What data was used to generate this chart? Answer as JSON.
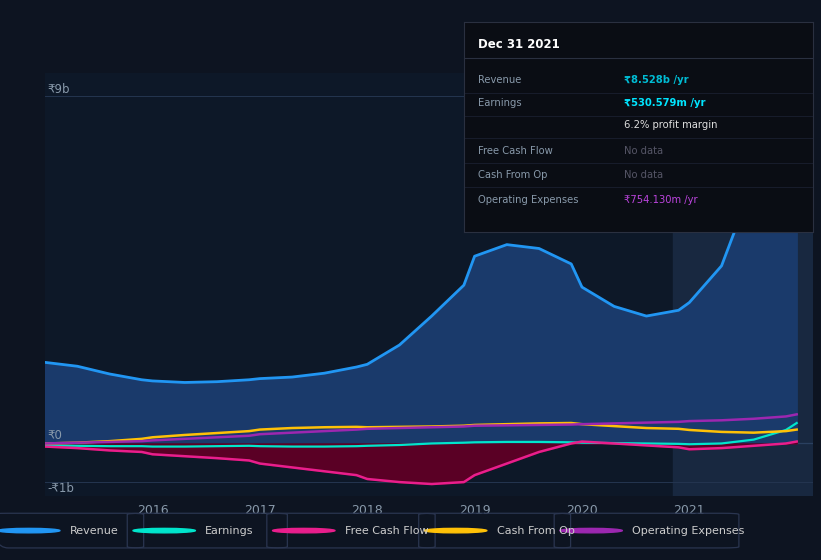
{
  "bg_color": "#0d1421",
  "plot_bg_color": "#0d1828",
  "grid_color": "#243550",
  "highlight_color": "#152030",
  "years_x": [
    2015.0,
    2015.3,
    2015.6,
    2015.9,
    2016.0,
    2016.3,
    2016.6,
    2016.9,
    2017.0,
    2017.3,
    2017.6,
    2017.9,
    2018.0,
    2018.3,
    2018.6,
    2018.9,
    2019.0,
    2019.3,
    2019.6,
    2019.9,
    2020.0,
    2020.3,
    2020.6,
    2020.9,
    2021.0,
    2021.3,
    2021.6,
    2021.9,
    2022.0
  ],
  "revenue": [
    2.1,
    2.0,
    1.8,
    1.65,
    1.62,
    1.58,
    1.6,
    1.65,
    1.68,
    1.72,
    1.82,
    1.98,
    2.05,
    2.55,
    3.3,
    4.1,
    4.85,
    5.15,
    5.05,
    4.65,
    4.05,
    3.55,
    3.3,
    3.45,
    3.65,
    4.6,
    6.8,
    8.2,
    8.528
  ],
  "earnings": [
    -0.05,
    -0.06,
    -0.07,
    -0.07,
    -0.08,
    -0.08,
    -0.07,
    -0.06,
    -0.07,
    -0.08,
    -0.08,
    -0.07,
    -0.06,
    -0.04,
    0.0,
    0.02,
    0.03,
    0.04,
    0.04,
    0.03,
    0.02,
    0.01,
    0.0,
    -0.01,
    -0.02,
    0.0,
    0.1,
    0.35,
    0.53
  ],
  "free_cash_flow": [
    -0.08,
    -0.12,
    -0.18,
    -0.22,
    -0.28,
    -0.33,
    -0.38,
    -0.44,
    -0.52,
    -0.62,
    -0.72,
    -0.82,
    -0.92,
    -1.0,
    -1.05,
    -1.0,
    -0.82,
    -0.52,
    -0.22,
    0.0,
    0.05,
    0.0,
    -0.05,
    -0.1,
    -0.15,
    -0.12,
    -0.06,
    0.0,
    0.05
  ],
  "cash_from_op": [
    0.0,
    0.02,
    0.06,
    0.12,
    0.16,
    0.22,
    0.27,
    0.32,
    0.36,
    0.4,
    0.42,
    0.43,
    0.42,
    0.43,
    0.44,
    0.46,
    0.48,
    0.5,
    0.52,
    0.53,
    0.5,
    0.45,
    0.4,
    0.38,
    0.35,
    0.3,
    0.28,
    0.32,
    0.36
  ],
  "operating_expenses": [
    0.0,
    0.02,
    0.04,
    0.06,
    0.08,
    0.12,
    0.16,
    0.2,
    0.24,
    0.28,
    0.32,
    0.36,
    0.38,
    0.4,
    0.42,
    0.44,
    0.46,
    0.47,
    0.48,
    0.49,
    0.5,
    0.52,
    0.54,
    0.56,
    0.58,
    0.6,
    0.64,
    0.7,
    0.754
  ],
  "revenue_color": "#2196f3",
  "earnings_color": "#00e5cc",
  "free_cash_flow_color": "#e91e8c",
  "cash_from_op_color": "#ffc107",
  "operating_expenses_color": "#9c27b0",
  "revenue_fill_color": "#1a3a6b",
  "fcf_fill_color": "#5a0025",
  "ylim": [
    -1.35,
    9.6
  ],
  "xlim": [
    2015.0,
    2022.15
  ],
  "highlight_start": 2020.85,
  "highlight_end": 2022.15,
  "info_box": {
    "title": "Dec 31 2021",
    "rows": [
      {
        "label": "Revenue",
        "value": "₹8.528b /yr",
        "value_color": "#00bcd4"
      },
      {
        "label": "Earnings",
        "value": "₹530.579m /yr",
        "value_color": "#00e5ff"
      },
      {
        "label": "",
        "value": "6.2% profit margin",
        "value_color": "#dddddd"
      },
      {
        "label": "Free Cash Flow",
        "value": "No data",
        "value_color": "#555566"
      },
      {
        "label": "Cash From Op",
        "value": "No data",
        "value_color": "#555566"
      },
      {
        "label": "Operating Expenses",
        "value": "₹754.130m /yr",
        "value_color": "#bb44dd"
      }
    ]
  },
  "legend_items": [
    {
      "label": "Revenue",
      "color": "#2196f3"
    },
    {
      "label": "Earnings",
      "color": "#00e5cc"
    },
    {
      "label": "Free Cash Flow",
      "color": "#e91e8c"
    },
    {
      "label": "Cash From Op",
      "color": "#ffc107"
    },
    {
      "label": "Operating Expenses",
      "color": "#9c27b0"
    }
  ],
  "ylabel_9b": "₹9b",
  "ylabel_0": "₹0",
  "ylabel_neg1b": "-₹1b"
}
